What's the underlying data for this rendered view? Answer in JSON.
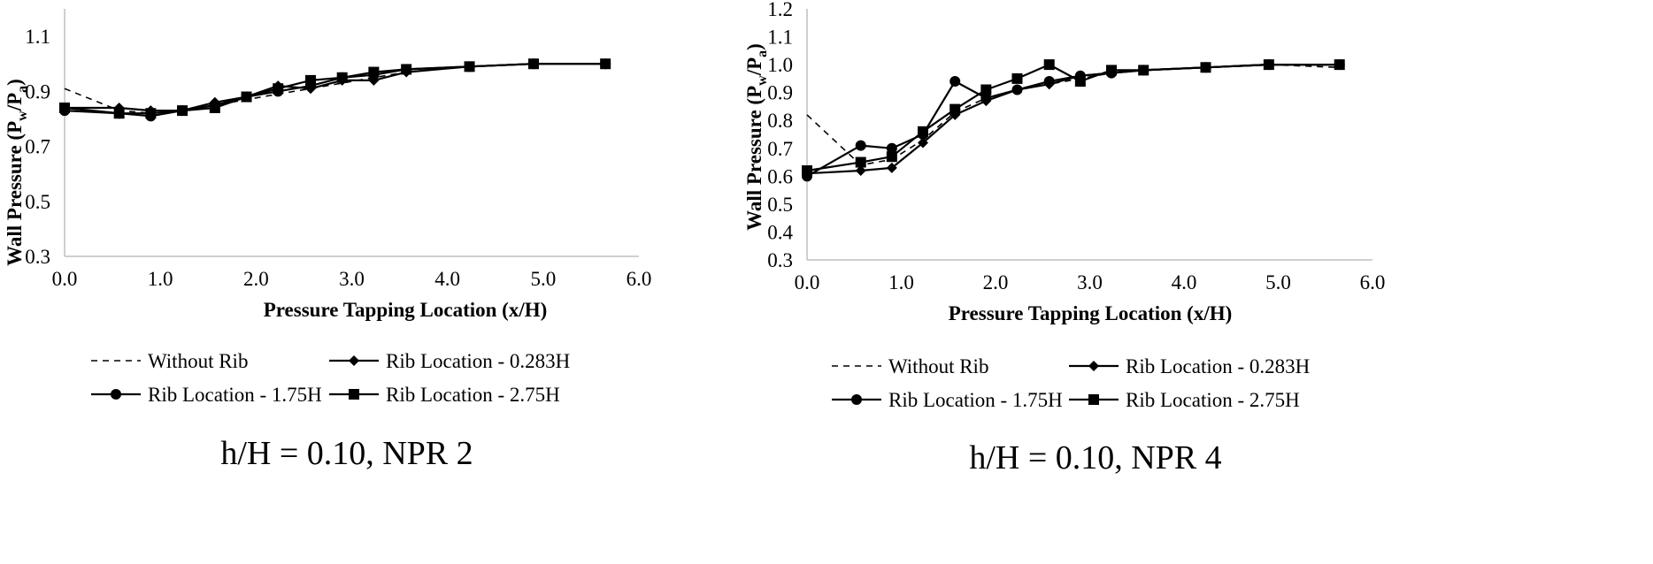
{
  "chart_data": [
    {
      "type": "line",
      "caption": "h/H = 0.10, NPR 2",
      "xlabel": "Pressure Tapping Location (x/H)",
      "ylabel": "Wall Pressure (P",
      "ylabel_sub1": "w",
      "ylabel_mid": "/P",
      "ylabel_sub2": "a",
      "ylabel_end": ")",
      "xlim": [
        0,
        6
      ],
      "ylim": [
        0.3,
        1.2
      ],
      "xticks": [
        0,
        1,
        2,
        3,
        4,
        5,
        6
      ],
      "xtick_labels": [
        "0.0",
        "1.0",
        "2.0",
        "3.0",
        "4.0",
        "5.0",
        "6.0"
      ],
      "yticks": [
        0.3,
        0.5,
        0.7,
        0.9,
        1.1
      ],
      "ytick_labels": [
        "0.3",
        "0.5",
        "0.7",
        "0.9",
        "1.1"
      ],
      "legend": [
        "Without Rib",
        "Rib Location - 0.283H",
        "Rib Location - 1.75H",
        "Rib Location - 2.75H"
      ],
      "series": [
        {
          "name": "Without Rib",
          "marker": "none",
          "dash": true,
          "x": [
            0,
            0.57,
            0.9,
            1.23,
            1.57,
            1.9,
            2.23,
            2.57,
            2.9,
            3.23,
            3.57,
            4.23,
            4.9,
            5.65
          ],
          "y": [
            0.91,
            0.83,
            0.82,
            0.83,
            0.85,
            0.87,
            0.89,
            0.91,
            0.93,
            0.95,
            0.97,
            0.99,
            1.0,
            1.0
          ]
        },
        {
          "name": "Rib Location - 0.283H",
          "marker": "diamond",
          "dash": false,
          "x": [
            0,
            0.57,
            0.9,
            1.23,
            1.57,
            1.9,
            2.23,
            2.57,
            2.9,
            3.23,
            3.57,
            4.23,
            4.9,
            5.65
          ],
          "y": [
            0.84,
            0.84,
            0.83,
            0.83,
            0.86,
            0.88,
            0.92,
            0.91,
            0.94,
            0.94,
            0.97,
            0.99,
            1.0,
            1.0
          ]
        },
        {
          "name": "Rib Location - 1.75H",
          "marker": "circle",
          "dash": false,
          "x": [
            0,
            0.57,
            0.9,
            1.23,
            1.57,
            1.9,
            2.23,
            2.57,
            2.9,
            3.23,
            3.57,
            4.23,
            4.9,
            5.65
          ],
          "y": [
            0.83,
            0.82,
            0.81,
            0.83,
            0.85,
            0.88,
            0.9,
            0.92,
            0.95,
            0.96,
            0.98,
            0.99,
            1.0,
            1.0
          ]
        },
        {
          "name": "Rib Location - 2.75H",
          "marker": "square",
          "dash": false,
          "x": [
            0,
            0.57,
            0.9,
            1.23,
            1.57,
            1.9,
            2.23,
            2.57,
            2.9,
            3.23,
            3.57,
            4.23,
            4.9,
            5.65
          ],
          "y": [
            0.84,
            0.82,
            0.82,
            0.83,
            0.84,
            0.88,
            0.91,
            0.94,
            0.95,
            0.97,
            0.98,
            0.99,
            1.0,
            1.0
          ]
        }
      ]
    },
    {
      "type": "line",
      "caption": "h/H = 0.10, NPR 4",
      "xlabel": "Pressure Tapping Location (x/H)",
      "ylabel": "Wall Pressure (P",
      "ylabel_sub1": "w",
      "ylabel_mid": "/P",
      "ylabel_sub2": "a",
      "ylabel_end": ")",
      "xlim": [
        0,
        6
      ],
      "ylim": [
        0.3,
        1.2
      ],
      "xticks": [
        0,
        1,
        2,
        3,
        4,
        5,
        6
      ],
      "xtick_labels": [
        "0.0",
        "1.0",
        "2.0",
        "3.0",
        "4.0",
        "5.0",
        "6.0"
      ],
      "yticks": [
        0.3,
        0.4,
        0.5,
        0.6,
        0.7,
        0.8,
        0.9,
        1.0,
        1.1,
        1.2
      ],
      "ytick_labels": [
        "0.3",
        "0.4",
        "0.5",
        "0.6",
        "0.7",
        "0.8",
        "0.9",
        "1.0",
        "1.1",
        "1.2"
      ],
      "legend": [
        "Without Rib",
        "Rib Location - 0.283H",
        "Rib Location - 1.75H",
        "Rib Location - 2.75H"
      ],
      "series": [
        {
          "name": "Without Rib",
          "marker": "none",
          "dash": true,
          "x": [
            0,
            0.57,
            0.9,
            1.23,
            1.57,
            1.9,
            2.23,
            2.57,
            2.9,
            3.23,
            3.57,
            4.23,
            4.9,
            5.65
          ],
          "y": [
            0.82,
            0.64,
            0.66,
            0.73,
            0.83,
            0.88,
            0.91,
            0.93,
            0.95,
            0.97,
            0.98,
            0.99,
            1.0,
            0.99
          ]
        },
        {
          "name": "Rib Location - 0.283H",
          "marker": "diamond",
          "dash": false,
          "x": [
            0,
            0.57,
            0.9,
            1.23,
            1.57,
            1.9,
            2.23,
            2.57,
            2.9,
            3.23,
            3.57,
            4.23,
            4.9,
            5.65
          ],
          "y": [
            0.61,
            0.62,
            0.63,
            0.72,
            0.82,
            0.87,
            0.91,
            0.93,
            0.96,
            0.97,
            0.98,
            0.99,
            1.0,
            1.0
          ]
        },
        {
          "name": "Rib Location - 1.75H",
          "marker": "circle",
          "dash": false,
          "x": [
            0,
            0.57,
            0.9,
            1.23,
            1.57,
            1.9,
            2.23,
            2.57,
            2.9,
            3.23,
            3.57,
            4.23,
            4.9,
            5.65
          ],
          "y": [
            0.6,
            0.71,
            0.7,
            0.75,
            0.94,
            0.88,
            0.91,
            0.94,
            0.96,
            0.97,
            0.98,
            0.99,
            1.0,
            1.0
          ]
        },
        {
          "name": "Rib Location - 2.75H",
          "marker": "square",
          "dash": false,
          "x": [
            0,
            0.57,
            0.9,
            1.23,
            1.57,
            1.9,
            2.23,
            2.57,
            2.9,
            3.23,
            3.57,
            4.23,
            4.9,
            5.65
          ],
          "y": [
            0.62,
            0.65,
            0.67,
            0.76,
            0.84,
            0.91,
            0.95,
            1.0,
            0.94,
            0.98,
            0.98,
            0.99,
            1.0,
            1.0
          ]
        }
      ]
    }
  ]
}
